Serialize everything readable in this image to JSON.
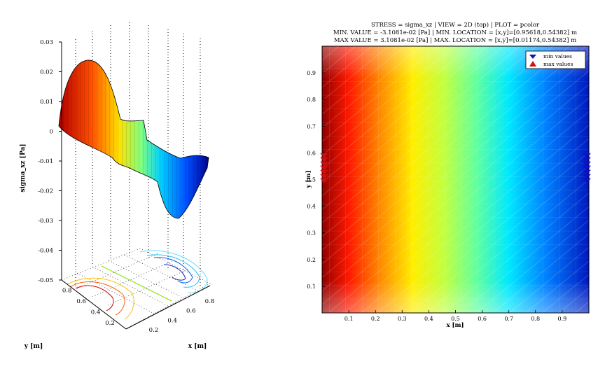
{
  "chart_data": [
    {
      "type": "surface3d",
      "zlabel": "sigma_xz [Pa]",
      "xlabel": "x [m]",
      "ylabel": "y [m]",
      "zlim": [
        -0.05,
        0.03
      ],
      "z_ticks": [
        "0.03",
        "0.02",
        "0.01",
        "0",
        "-0.01",
        "-0.02",
        "-0.03",
        "-0.04",
        "-0.05"
      ],
      "x_ticks": [
        "0.2",
        "0.4",
        "0.6",
        "0.8"
      ],
      "y_ticks": [
        "0.8",
        "0.6",
        "0.4",
        "0.2"
      ],
      "grid": true,
      "colormap": [
        "#00008f",
        "#0060ff",
        "#00e0ff",
        "#80ff80",
        "#ffe000",
        "#ff4000",
        "#800000"
      ]
    },
    {
      "type": "heatmap",
      "title_lines": [
        "STRESS = sigma_xz  |  VIEW = 2D (top)  |  PLOT = pcolor",
        "MIN. VALUE = -3.1081e-02 [Pa]  |  MIN. LOCATION = [x,y]=[0.95618,0.54382] m",
        "MAX VALUE = 3.1081e-02 [Pa]  |  MAX. LOCATION = [x,y]=[0.01174,0.54382] m"
      ],
      "xlabel": "x [m]",
      "ylabel": "y [m]",
      "xlim": [
        0,
        1
      ],
      "ylim": [
        0,
        1
      ],
      "x_ticks": [
        "0.1",
        "0.2",
        "0.3",
        "0.4",
        "0.5",
        "0.6",
        "0.7",
        "0.8",
        "0.9"
      ],
      "y_ticks": [
        "0.1",
        "0.2",
        "0.3",
        "0.4",
        "0.5",
        "0.6",
        "0.7",
        "0.8",
        "0.9"
      ],
      "min_value": -0.031081,
      "max_value": 0.031081,
      "min_location": [
        0.95618,
        0.54382
      ],
      "max_location": [
        0.01174,
        0.54382
      ],
      "legend": [
        "min values",
        "max values"
      ],
      "legend_position": "top-right",
      "min_marker_color": "#1010c0",
      "max_marker_color": "#d01010",
      "colormap": [
        "#800000",
        "#ff2000",
        "#ff9000",
        "#ffff00",
        "#80ff80",
        "#00e0ff",
        "#0060ff",
        "#0000a0"
      ]
    }
  ]
}
